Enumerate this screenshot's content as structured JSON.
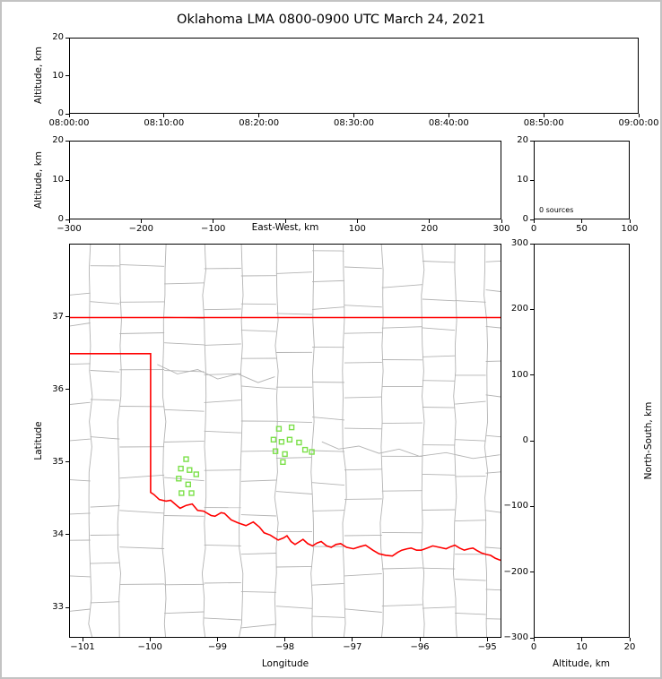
{
  "title": "Oklahoma LMA 0800-0900 UTC March 24, 2021",
  "colors": {
    "background": "#ffffff",
    "frame_border": "#c3c3c3",
    "axis": "#000000",
    "county_line": "#b3b3b3",
    "state_border": "#ff0000",
    "station_marker": "#7ce04a"
  },
  "panels": {
    "time_height": {
      "ylabel": "Altitude, km",
      "ylim": [
        0,
        20
      ],
      "yticks": [
        {
          "v": 20,
          "label": "20"
        },
        {
          "v": 10,
          "label": "10"
        },
        {
          "v": 0,
          "label": "0"
        }
      ],
      "xticks": [
        {
          "f": 0,
          "label": "08:00:00"
        },
        {
          "f": 0.16667,
          "label": "08:10:00"
        },
        {
          "f": 0.33333,
          "label": "08:20:00"
        },
        {
          "f": 0.5,
          "label": "08:30:00"
        },
        {
          "f": 0.66667,
          "label": "08:40:00"
        },
        {
          "f": 0.83333,
          "label": "08:50:00"
        },
        {
          "f": 1,
          "label": "09:00:00"
        }
      ]
    },
    "ew_height": {
      "ylabel": "Altitude, km",
      "xlabel": "East-West, km",
      "xlim": [
        -300,
        300
      ],
      "ylim": [
        0,
        20
      ],
      "yticks": [
        {
          "v": 20,
          "label": "20"
        },
        {
          "v": 10,
          "label": "10"
        },
        {
          "v": 0,
          "label": "0"
        }
      ],
      "xticks": [
        {
          "v": -300,
          "label": "−300"
        },
        {
          "v": -200,
          "label": "−200"
        },
        {
          "v": -100,
          "label": "−100"
        },
        {
          "v": 0,
          "label": ""
        },
        {
          "v": 100,
          "label": "100"
        },
        {
          "v": 200,
          "label": "200"
        },
        {
          "v": 300,
          "label": "300"
        }
      ]
    },
    "histogram": {
      "annotation": "0 sources",
      "xlim": [
        0,
        100
      ],
      "ylim": [
        0,
        20
      ],
      "yticks": [
        {
          "v": 20,
          "label": "20"
        },
        {
          "v": 10,
          "label": "10"
        },
        {
          "v": 0,
          "label": "0"
        }
      ],
      "xticks": [
        {
          "v": 0,
          "label": "0"
        },
        {
          "v": 50,
          "label": "50"
        },
        {
          "v": 100,
          "label": "100"
        }
      ]
    },
    "map": {
      "xlabel": "Longitude",
      "ylabel": "Latitude",
      "xlim": [
        -101.2,
        -94.79
      ],
      "ylim": [
        32.58,
        38.01
      ],
      "xticks": [
        {
          "v": -101,
          "label": "−101"
        },
        {
          "v": -100,
          "label": "−100"
        },
        {
          "v": -99,
          "label": "−99"
        },
        {
          "v": -98,
          "label": "−98"
        },
        {
          "v": -97,
          "label": "−97"
        },
        {
          "v": -96,
          "label": "−96"
        },
        {
          "v": -95,
          "label": "−95"
        }
      ],
      "yticks": [
        {
          "v": 37,
          "label": "37"
        },
        {
          "v": 36,
          "label": "36"
        },
        {
          "v": 35,
          "label": "35"
        },
        {
          "v": 34,
          "label": "34"
        },
        {
          "v": 33,
          "label": "33"
        }
      ]
    },
    "ns_height": {
      "xlabel": "Altitude, km",
      "ylabel": "North-South, km",
      "xlim": [
        0,
        20
      ],
      "ylim": [
        -300,
        300
      ],
      "xticks": [
        {
          "v": 0,
          "label": "0"
        },
        {
          "v": 10,
          "label": "10"
        },
        {
          "v": 20,
          "label": "20"
        }
      ],
      "yticks": [
        {
          "v": 300,
          "label": "300"
        },
        {
          "v": 200,
          "label": "200"
        },
        {
          "v": 100,
          "label": "100"
        },
        {
          "v": 0,
          "label": "0"
        },
        {
          "v": -100,
          "label": "−100"
        },
        {
          "v": -200,
          "label": "−200"
        },
        {
          "v": -300,
          "label": "−300"
        }
      ]
    }
  },
  "map_features": {
    "kansas_border": [
      [
        -101.2,
        37.0
      ],
      [
        -94.79,
        37.0
      ]
    ],
    "state_boundary": [
      [
        -101.2,
        36.5
      ],
      [
        -100,
        36.5
      ],
      [
        -100,
        34.58
      ],
      [
        -99.95,
        34.55
      ],
      [
        -99.87,
        34.48
      ],
      [
        -99.77,
        34.46
      ],
      [
        -99.7,
        34.47
      ],
      [
        -99.6,
        34.39
      ],
      [
        -99.56,
        34.36
      ],
      [
        -99.47,
        34.4
      ],
      [
        -99.38,
        34.42
      ],
      [
        -99.3,
        34.33
      ],
      [
        -99.21,
        34.32
      ],
      [
        -99.1,
        34.26
      ],
      [
        -99.04,
        34.25
      ],
      [
        -98.95,
        34.3
      ],
      [
        -98.9,
        34.29
      ],
      [
        -98.8,
        34.2
      ],
      [
        -98.7,
        34.16
      ],
      [
        -98.58,
        34.12
      ],
      [
        -98.47,
        34.17
      ],
      [
        -98.38,
        34.1
      ],
      [
        -98.31,
        34.02
      ],
      [
        -98.22,
        33.99
      ],
      [
        -98.17,
        33.96
      ],
      [
        -98.1,
        33.92
      ],
      [
        -98.02,
        33.95
      ],
      [
        -97.97,
        33.98
      ],
      [
        -97.91,
        33.9
      ],
      [
        -97.85,
        33.86
      ],
      [
        -97.78,
        33.9
      ],
      [
        -97.73,
        33.93
      ],
      [
        -97.66,
        33.87
      ],
      [
        -97.59,
        33.84
      ],
      [
        -97.52,
        33.88
      ],
      [
        -97.46,
        33.9
      ],
      [
        -97.38,
        33.84
      ],
      [
        -97.31,
        33.82
      ],
      [
        -97.24,
        33.86
      ],
      [
        -97.17,
        33.87
      ],
      [
        -97.08,
        33.82
      ],
      [
        -96.98,
        33.8
      ],
      [
        -96.88,
        33.83
      ],
      [
        -96.8,
        33.85
      ],
      [
        -96.69,
        33.78
      ],
      [
        -96.6,
        33.73
      ],
      [
        -96.5,
        33.71
      ],
      [
        -96.4,
        33.7
      ],
      [
        -96.32,
        33.75
      ],
      [
        -96.26,
        33.78
      ],
      [
        -96.18,
        33.8
      ],
      [
        -96.12,
        33.81
      ],
      [
        -96.04,
        33.78
      ],
      [
        -95.97,
        33.78
      ],
      [
        -95.88,
        33.81
      ],
      [
        -95.8,
        33.84
      ],
      [
        -95.7,
        33.82
      ],
      [
        -95.6,
        33.8
      ],
      [
        -95.53,
        33.83
      ],
      [
        -95.47,
        33.85
      ],
      [
        -95.4,
        33.81
      ],
      [
        -95.33,
        33.78
      ],
      [
        -95.26,
        33.8
      ],
      [
        -95.2,
        33.81
      ],
      [
        -95.13,
        33.77
      ],
      [
        -95.07,
        33.74
      ],
      [
        -95,
        33.72
      ],
      [
        -94.94,
        33.71
      ],
      [
        -94.87,
        33.67
      ],
      [
        -94.79,
        33.64
      ]
    ],
    "rivers": [
      [
        [
          -97.45,
          35.28
        ],
        [
          -97.2,
          35.18
        ],
        [
          -96.9,
          35.22
        ],
        [
          -96.6,
          35.12
        ],
        [
          -96.3,
          35.18
        ],
        [
          -96.0,
          35.08
        ],
        [
          -95.6,
          35.13
        ],
        [
          -95.2,
          35.05
        ],
        [
          -94.8,
          35.1
        ]
      ],
      [
        [
          -99.9,
          36.35
        ],
        [
          -99.6,
          36.22
        ],
        [
          -99.3,
          36.28
        ],
        [
          -99.0,
          36.15
        ],
        [
          -98.7,
          36.22
        ],
        [
          -98.4,
          36.1
        ],
        [
          -98.15,
          36.18
        ]
      ]
    ],
    "stations": [
      [
        -99.47,
        35.04
      ],
      [
        -99.55,
        34.91
      ],
      [
        -99.42,
        34.89
      ],
      [
        -99.32,
        34.83
      ],
      [
        -99.58,
        34.77
      ],
      [
        -99.44,
        34.69
      ],
      [
        -99.54,
        34.57
      ],
      [
        -99.39,
        34.57
      ],
      [
        -98.09,
        35.46
      ],
      [
        -97.9,
        35.48
      ],
      [
        -98.17,
        35.31
      ],
      [
        -98.05,
        35.28
      ],
      [
        -97.93,
        35.31
      ],
      [
        -97.79,
        35.27
      ],
      [
        -98.14,
        35.15
      ],
      [
        -98.0,
        35.11
      ],
      [
        -97.7,
        35.17
      ],
      [
        -97.6,
        35.14
      ],
      [
        -98.03,
        35.0
      ]
    ]
  },
  "county_grid": {
    "seed": 7,
    "col_step": 0.42,
    "col_jitter": 0.25,
    "row_step": 0.36,
    "row_jitter": 0.22
  },
  "chart_data": {
    "type": "scatter",
    "title": "Oklahoma LMA 0800-0900 UTC March 24, 2021",
    "source_count": 0,
    "sources": [],
    "histogram_annotation": "0 sources",
    "stations_lon_lat": [
      [
        -99.47,
        35.04
      ],
      [
        -99.55,
        34.91
      ],
      [
        -99.42,
        34.89
      ],
      [
        -99.32,
        34.83
      ],
      [
        -99.58,
        34.77
      ],
      [
        -99.44,
        34.69
      ],
      [
        -99.54,
        34.57
      ],
      [
        -99.39,
        34.57
      ],
      [
        -98.09,
        35.46
      ],
      [
        -97.9,
        35.48
      ],
      [
        -98.17,
        35.31
      ],
      [
        -98.05,
        35.28
      ],
      [
        -97.93,
        35.31
      ],
      [
        -97.79,
        35.27
      ],
      [
        -98.14,
        35.15
      ],
      [
        -98.0,
        35.11
      ],
      [
        -97.7,
        35.17
      ],
      [
        -97.6,
        35.14
      ],
      [
        -98.03,
        35.0
      ]
    ],
    "panels": [
      {
        "name": "altitude_vs_time",
        "ylabel": "Altitude, km",
        "ylim": [
          0,
          20
        ],
        "xticks": [
          "08:00:00",
          "08:10:00",
          "08:20:00",
          "08:30:00",
          "08:40:00",
          "08:50:00",
          "09:00:00"
        ],
        "points": []
      },
      {
        "name": "altitude_vs_east_west",
        "xlabel": "East-West, km",
        "xlim": [
          -300,
          300
        ],
        "ylim": [
          0,
          20
        ],
        "points": []
      },
      {
        "name": "source_count_histogram",
        "xlim": [
          0,
          100
        ],
        "ylim": [
          0,
          20
        ],
        "annotation": "0 sources",
        "points": []
      },
      {
        "name": "plan_view_map",
        "xlabel": "Longitude",
        "ylabel": "Latitude",
        "xlim": [
          -101.2,
          -94.79
        ],
        "ylim": [
          32.58,
          38.01
        ],
        "points": []
      },
      {
        "name": "north_south_vs_altitude",
        "xlabel": "Altitude, km",
        "ylabel": "North-South, km",
        "xlim": [
          0,
          20
        ],
        "ylim": [
          -300,
          300
        ],
        "points": []
      }
    ]
  }
}
